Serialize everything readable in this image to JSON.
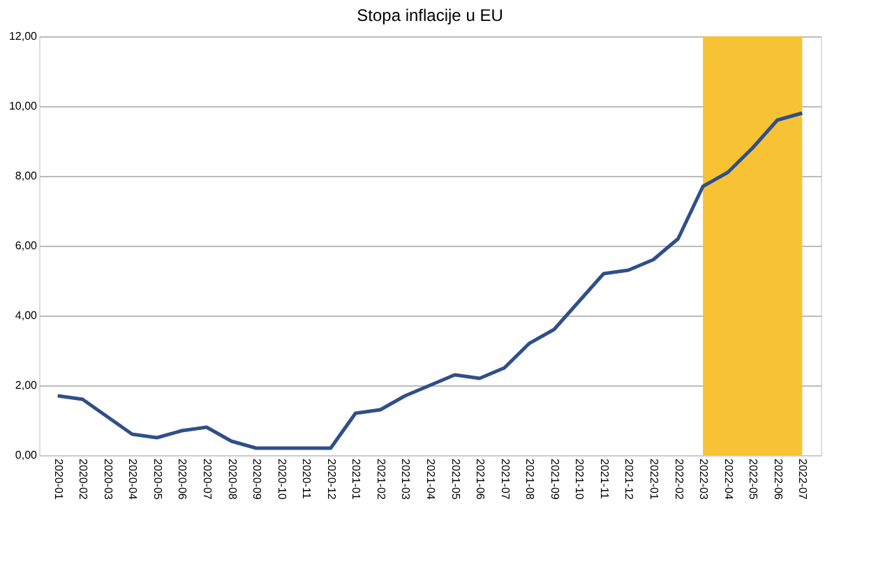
{
  "chart_data": {
    "type": "line",
    "title": "Stopa inflacije u EU",
    "categories": [
      "2020-01",
      "2020-02",
      "2020-03",
      "2020-04",
      "2020-05",
      "2020-06",
      "2020-07",
      "2020-08",
      "2020-09",
      "2020-10",
      "2020-11",
      "2020-12",
      "2021-01",
      "2021-02",
      "2021-03",
      "2021-04",
      "2021-05",
      "2021-06",
      "2021-07",
      "2021-08",
      "2021-09",
      "2021-10",
      "2021-11",
      "2021-12",
      "2022-01",
      "2022-02",
      "2022-03",
      "2022-04",
      "2022-05",
      "2022-06",
      "2022-07"
    ],
    "series": [
      {
        "color": "#2e4f8a",
        "values": [
          1.7,
          1.6,
          1.1,
          0.6,
          0.5,
          0.7,
          0.8,
          0.4,
          0.2,
          0.2,
          0.2,
          0.2,
          1.2,
          1.3,
          1.7,
          2.0,
          2.3,
          2.2,
          2.5,
          3.2,
          3.6,
          4.4,
          5.2,
          5.3,
          5.6,
          6.2,
          7.7,
          8.1,
          8.8,
          9.6,
          9.8
        ]
      }
    ],
    "ylim": [
      0,
      12
    ],
    "yticks": [
      {
        "value": 0,
        "label": "0,00"
      },
      {
        "value": 2,
        "label": "2,00"
      },
      {
        "value": 4,
        "label": "4,00"
      },
      {
        "value": 6,
        "label": "6,00"
      },
      {
        "value": 8,
        "label": "8,00"
      },
      {
        "value": 10,
        "label": "10,00"
      },
      {
        "value": 12,
        "label": "12,00"
      }
    ],
    "bands": [
      {
        "axis": "x",
        "from": "2022-03",
        "to": "2022-07",
        "color": "#f7c335"
      }
    ],
    "grid": "y",
    "marker": "none",
    "line_style": "solid"
  }
}
